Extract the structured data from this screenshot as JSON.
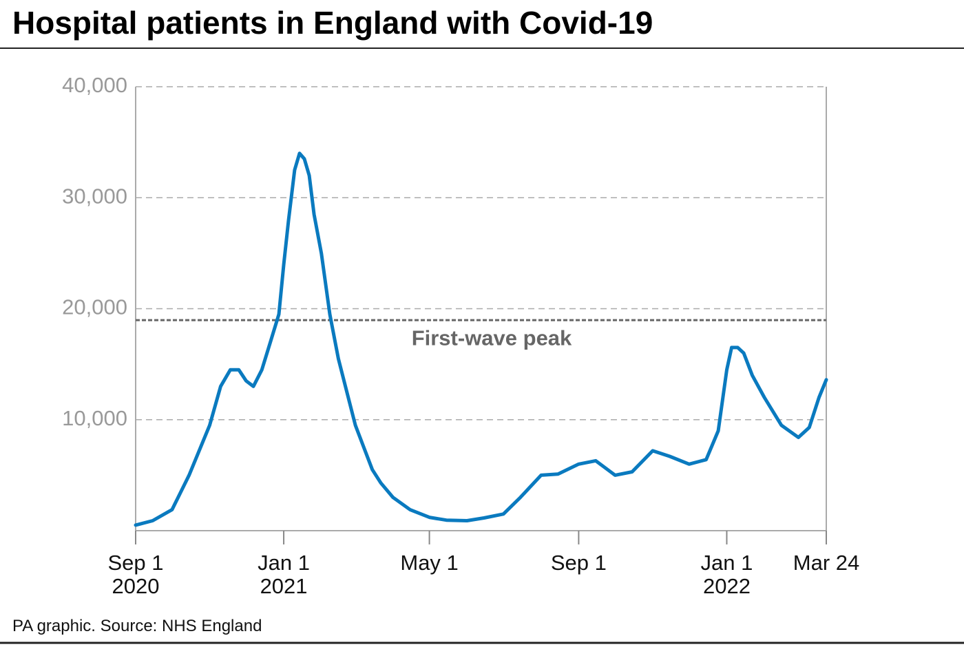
{
  "chart_data": {
    "type": "line",
    "title": "Hospital patients in England with Covid-19",
    "source": "PA graphic. Source: NHS England",
    "x": [
      "2020-09-01",
      "2020-09-15",
      "2020-10-01",
      "2020-10-15",
      "2020-11-01",
      "2020-11-10",
      "2020-11-18",
      "2020-11-25",
      "2020-12-01",
      "2020-12-07",
      "2020-12-14",
      "2020-12-21",
      "2020-12-28",
      "2021-01-01",
      "2021-01-05",
      "2021-01-10",
      "2021-01-14",
      "2021-01-18",
      "2021-01-22",
      "2021-01-26",
      "2021-02-01",
      "2021-02-08",
      "2021-02-15",
      "2021-02-22",
      "2021-03-01",
      "2021-03-08",
      "2021-03-15",
      "2021-03-22",
      "2021-04-01",
      "2021-04-15",
      "2021-05-01",
      "2021-05-15",
      "2021-06-01",
      "2021-06-15",
      "2021-07-01",
      "2021-07-15",
      "2021-08-01",
      "2021-08-15",
      "2021-09-01",
      "2021-09-15",
      "2021-10-01",
      "2021-10-15",
      "2021-11-01",
      "2021-11-15",
      "2021-12-01",
      "2021-12-15",
      "2021-12-25",
      "2022-01-01",
      "2022-01-05",
      "2022-01-10",
      "2022-01-15",
      "2022-01-22",
      "2022-02-01",
      "2022-02-15",
      "2022-03-01",
      "2022-03-10",
      "2022-03-18",
      "2022-03-24"
    ],
    "series": [
      {
        "name": "Hospital patients",
        "color": "#0a7abf",
        "values": [
          500,
          900,
          1900,
          5000,
          9500,
          13000,
          14500,
          14500,
          13500,
          13000,
          14500,
          17000,
          19500,
          24000,
          28000,
          32500,
          34000,
          33500,
          32000,
          28500,
          25000,
          19500,
          15500,
          12500,
          9500,
          7500,
          5500,
          4300,
          3000,
          1900,
          1200,
          950,
          900,
          1150,
          1500,
          3000,
          5000,
          5100,
          6000,
          6300,
          5000,
          5300,
          7200,
          6700,
          6000,
          6400,
          9000,
          14500,
          16500,
          16500,
          16000,
          14000,
          12000,
          9500,
          8400,
          9300,
          12000,
          13600
        ]
      }
    ],
    "xlim": [
      "2020-09-01",
      "2022-03-24"
    ],
    "xticks": [
      {
        "value": "2020-09-01",
        "label": "Sep 1\n2020"
      },
      {
        "value": "2021-01-01",
        "label": "Jan 1\n2021"
      },
      {
        "value": "2021-05-01",
        "label": "May 1"
      },
      {
        "value": "2021-09-01",
        "label": "Sep 1"
      },
      {
        "value": "2022-01-01",
        "label": "Jan 1\n2022"
      },
      {
        "value": "2022-03-24",
        "label": "Mar 24"
      }
    ],
    "ylim": [
      0,
      40000
    ],
    "yticks": [
      {
        "value": 10000,
        "label": "10,000"
      },
      {
        "value": 20000,
        "label": "20,000"
      },
      {
        "value": 30000,
        "label": "30,000"
      },
      {
        "value": 40000,
        "label": "40,000"
      }
    ],
    "grid": true,
    "reference_line": {
      "value": 18970,
      "label": "First-wave peak"
    }
  }
}
